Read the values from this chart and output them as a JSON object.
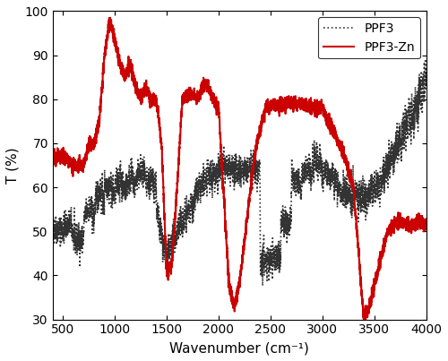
{
  "title": "",
  "xlabel": "Wavenumber (cm⁻¹)",
  "ylabel": "T (%)",
  "xlim": [
    400,
    4000
  ],
  "ylim": [
    30,
    100
  ],
  "xticks": [
    500,
    1000,
    1500,
    2000,
    2500,
    3000,
    3500,
    4000
  ],
  "yticks": [
    30,
    40,
    50,
    60,
    70,
    80,
    90,
    100
  ],
  "ppf3_color": "#333333",
  "ppf3zn_color": "#cc0000",
  "legend_labels": [
    "PPF3",
    "PPF3-Zn"
  ],
  "legend_loc": "upper right"
}
